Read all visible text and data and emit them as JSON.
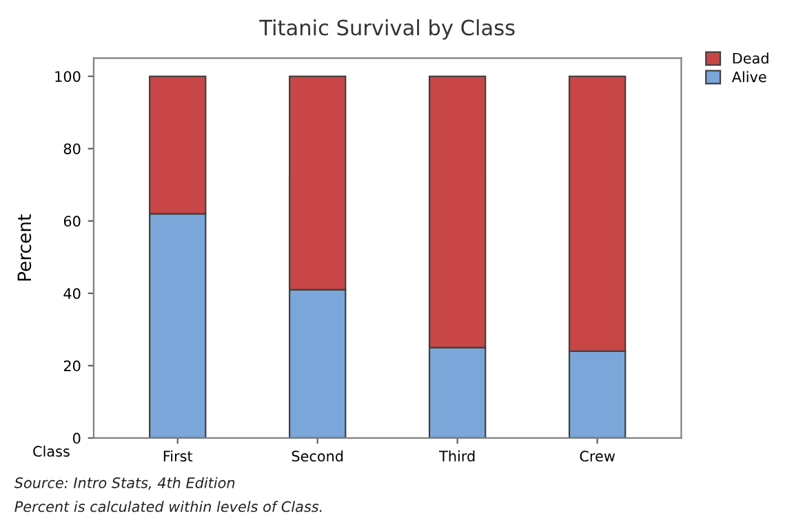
{
  "chart_data": {
    "type": "bar",
    "title": "Titanic Survival by Class",
    "xlabel": "Class",
    "ylabel": "Percent",
    "categories": [
      "First",
      "Second",
      "Third",
      "Crew"
    ],
    "series": [
      {
        "name": "Alive",
        "color": "#7ba6d9",
        "values": [
          62,
          41,
          25,
          24
        ]
      },
      {
        "name": "Dead",
        "color": "#c84646",
        "values": [
          38,
          59,
          75,
          76
        ]
      }
    ],
    "stacked": true,
    "ylim": [
      0,
      105
    ],
    "yticks": [
      0,
      20,
      40,
      60,
      80,
      100
    ],
    "grid": false,
    "legend": "top right",
    "annotations": [
      "Source: Intro Stats, 4th Edition",
      "Percent is calculated within levels of Class."
    ]
  }
}
